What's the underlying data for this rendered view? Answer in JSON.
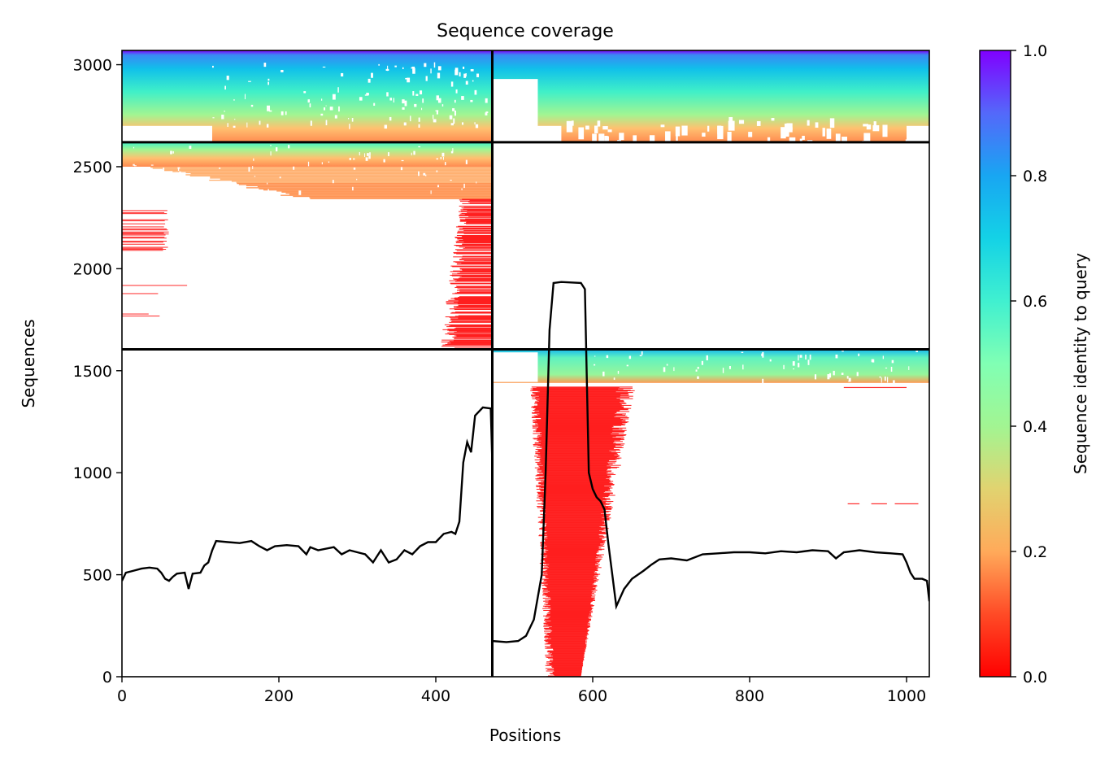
{
  "chart_data": {
    "type": "heatmap",
    "title": "Sequence coverage",
    "xlabel": "Positions",
    "ylabel": "Sequences",
    "xlim": [
      0,
      1029
    ],
    "ylim": [
      0,
      3070
    ],
    "xticks": [
      0,
      200,
      400,
      600,
      800,
      1000
    ],
    "yticks": [
      0,
      500,
      1000,
      1500,
      2000,
      2500,
      3000
    ],
    "colorbar": {
      "label": "Sequence identity to query",
      "colormap": "rainbow_r",
      "range": [
        0.0,
        1.0
      ],
      "ticks": [
        "0.0",
        "0.2",
        "0.4",
        "0.6",
        "0.8",
        "1.0"
      ]
    },
    "grid": false,
    "block_boundaries": {
      "positions": [
        472
      ],
      "sequences": [
        1605,
        2620
      ]
    },
    "coverage_line": {
      "name": "coverage",
      "points": [
        [
          0,
          470
        ],
        [
          5,
          510
        ],
        [
          15,
          520
        ],
        [
          25,
          530
        ],
        [
          35,
          535
        ],
        [
          45,
          530
        ],
        [
          50,
          510
        ],
        [
          55,
          480
        ],
        [
          60,
          470
        ],
        [
          65,
          490
        ],
        [
          70,
          505
        ],
        [
          80,
          510
        ],
        [
          85,
          430
        ],
        [
          90,
          505
        ],
        [
          100,
          510
        ],
        [
          105,
          545
        ],
        [
          110,
          560
        ],
        [
          115,
          620
        ],
        [
          120,
          665
        ],
        [
          135,
          660
        ],
        [
          150,
          655
        ],
        [
          165,
          665
        ],
        [
          175,
          640
        ],
        [
          185,
          620
        ],
        [
          195,
          640
        ],
        [
          210,
          645
        ],
        [
          225,
          640
        ],
        [
          235,
          600
        ],
        [
          240,
          635
        ],
        [
          250,
          620
        ],
        [
          270,
          635
        ],
        [
          280,
          600
        ],
        [
          290,
          620
        ],
        [
          300,
          610
        ],
        [
          310,
          600
        ],
        [
          320,
          560
        ],
        [
          330,
          620
        ],
        [
          340,
          560
        ],
        [
          350,
          575
        ],
        [
          360,
          620
        ],
        [
          370,
          600
        ],
        [
          380,
          640
        ],
        [
          390,
          660
        ],
        [
          400,
          660
        ],
        [
          410,
          700
        ],
        [
          420,
          710
        ],
        [
          425,
          700
        ],
        [
          430,
          760
        ],
        [
          435,
          1050
        ],
        [
          440,
          1150
        ],
        [
          445,
          1100
        ],
        [
          450,
          1280
        ],
        [
          460,
          1320
        ],
        [
          470,
          1315
        ],
        [
          472,
          1050
        ],
        [
          472,
          175
        ],
        [
          490,
          170
        ],
        [
          505,
          175
        ],
        [
          515,
          200
        ],
        [
          525,
          280
        ],
        [
          535,
          500
        ],
        [
          540,
          1000
        ],
        [
          545,
          1700
        ],
        [
          550,
          1930
        ],
        [
          560,
          1935
        ],
        [
          585,
          1930
        ],
        [
          590,
          1900
        ],
        [
          595,
          1000
        ],
        [
          600,
          920
        ],
        [
          605,
          880
        ],
        [
          610,
          860
        ],
        [
          615,
          820
        ],
        [
          620,
          650
        ],
        [
          625,
          500
        ],
        [
          630,
          345
        ],
        [
          640,
          430
        ],
        [
          650,
          480
        ],
        [
          665,
          520
        ],
        [
          675,
          550
        ],
        [
          685,
          575
        ],
        [
          700,
          580
        ],
        [
          720,
          570
        ],
        [
          740,
          600
        ],
        [
          760,
          605
        ],
        [
          780,
          610
        ],
        [
          800,
          610
        ],
        [
          820,
          605
        ],
        [
          840,
          615
        ],
        [
          860,
          610
        ],
        [
          880,
          620
        ],
        [
          900,
          615
        ],
        [
          910,
          580
        ],
        [
          920,
          610
        ],
        [
          940,
          620
        ],
        [
          960,
          610
        ],
        [
          980,
          605
        ],
        [
          995,
          600
        ],
        [
          1000,
          560
        ],
        [
          1005,
          510
        ],
        [
          1010,
          480
        ],
        [
          1020,
          480
        ],
        [
          1026,
          470
        ],
        [
          1029,
          370
        ]
      ]
    },
    "blocks": [
      {
        "xrange": [
          0,
          472
        ],
        "yrange": [
          2620,
          3070
        ],
        "fill": "gradient",
        "note_rows": "identity 1.0 at top to 0.2 at bottom",
        "gaps": [
          [
            0,
            115,
            2620,
            2700
          ]
        ]
      },
      {
        "xrange": [
          472,
          1029
        ],
        "yrange": [
          2620,
          3070
        ],
        "fill": "gradient",
        "gaps": [
          [
            472,
            530,
            2620,
            2900
          ],
          [
            472,
            560,
            2620,
            2700
          ]
        ]
      },
      {
        "xrange": [
          0,
          472
        ],
        "yrange": [
          2340,
          2620
        ],
        "fill": "gradient"
      },
      {
        "xrange": [
          405,
          472
        ],
        "yrange": [
          1605,
          2340
        ],
        "fill": "red-streaks"
      },
      {
        "xrange": [
          0,
          57
        ],
        "yrange": [
          2090,
          2300
        ],
        "fill": "red-streaks"
      },
      {
        "xrange": [
          472,
          1029
        ],
        "yrange": [
          1440,
          1605
        ],
        "fill": "gradient-light"
      },
      {
        "xrange": [
          520,
          600
        ],
        "yrange": [
          0,
          1440
        ],
        "fill": "red-streaks"
      }
    ]
  }
}
